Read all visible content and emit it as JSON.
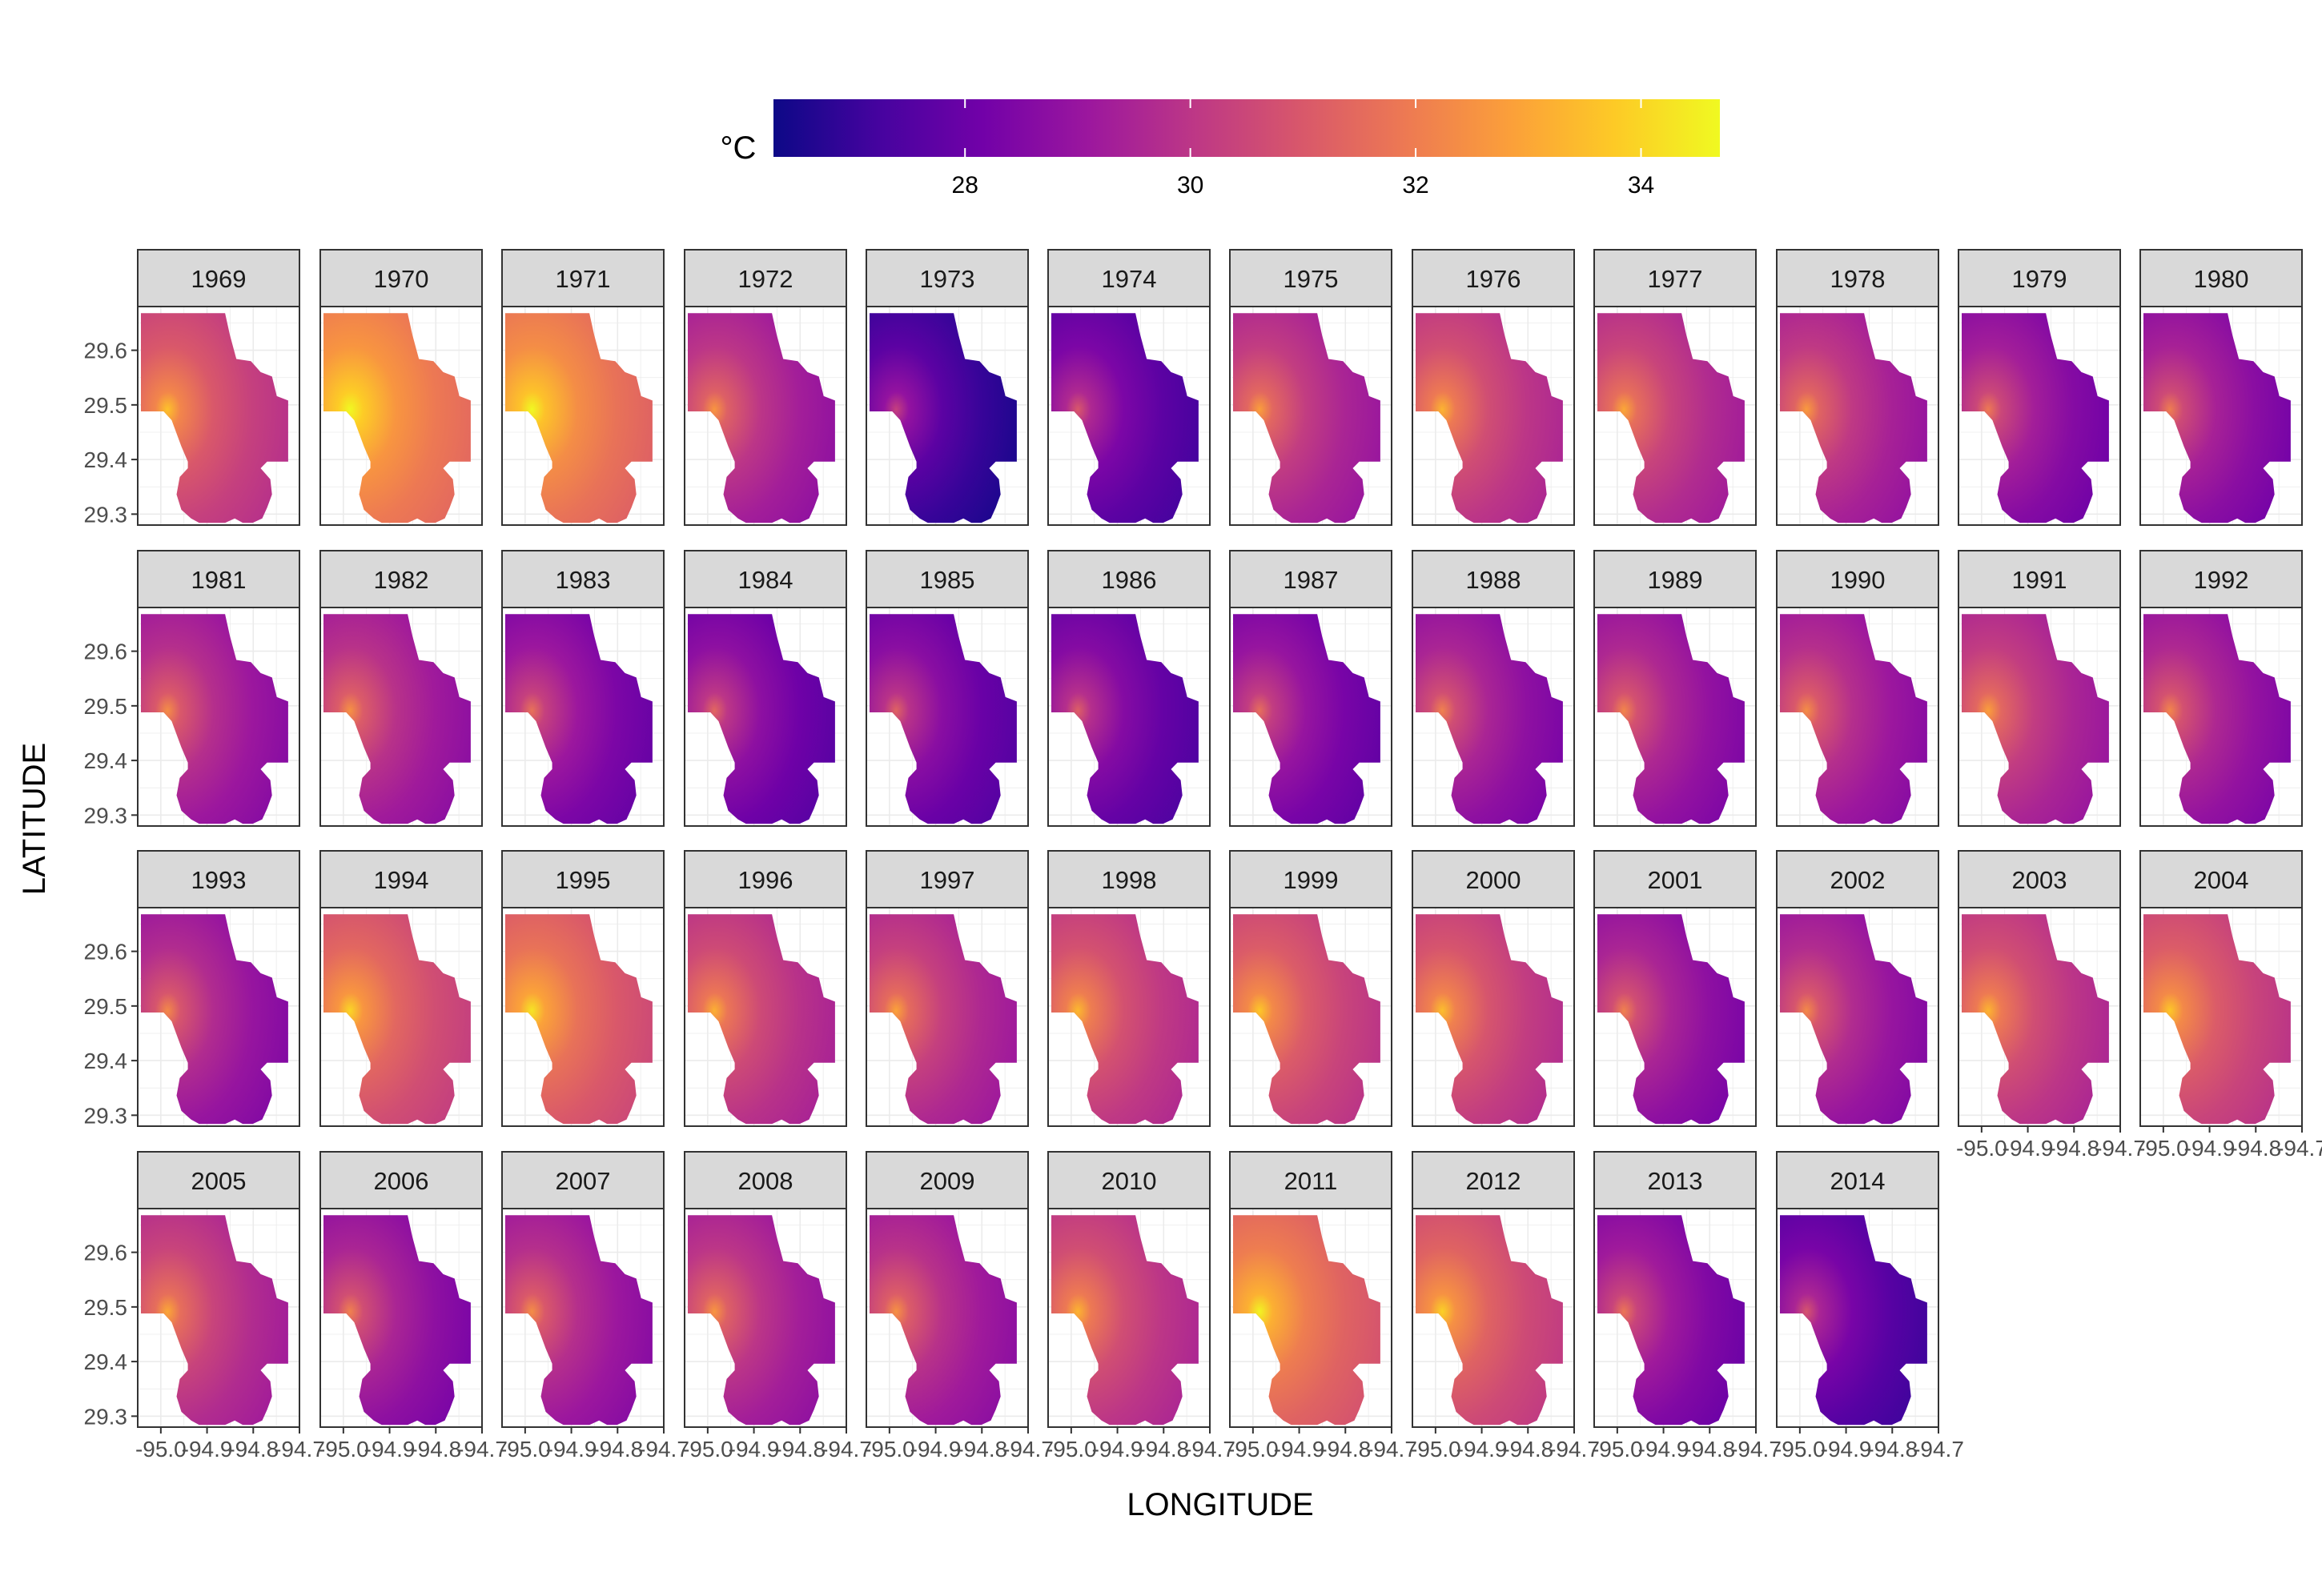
{
  "chart_data": {
    "type": "heatmap",
    "title": "",
    "xlabel": "LONGITUDE",
    "ylabel": "LATITUDE",
    "facet_by": "year",
    "layout": {
      "rows": 4,
      "cols": 12
    },
    "xlim": [
      -95.05,
      -94.7
    ],
    "ylim": [
      29.28,
      29.68
    ],
    "x_ticks": [
      -95.0,
      -94.9,
      -94.8,
      -94.7
    ],
    "x_tick_labels": [
      "-95.0",
      "-94.9",
      "-94.8",
      "-94.7"
    ],
    "y_ticks": [
      29.3,
      29.4,
      29.5,
      29.6
    ],
    "y_tick_labels": [
      "29.3",
      "29.4",
      "29.5",
      "29.6"
    ],
    "grid": true,
    "legend": {
      "title": "°C",
      "position": "top",
      "range": [
        26.3,
        34.7
      ],
      "ticks": [
        28,
        30,
        32,
        34
      ],
      "tick_labels": [
        "28",
        "30",
        "32",
        "34"
      ],
      "palette": "plasma",
      "colors": [
        "#0d0887",
        "#46039f",
        "#7201a8",
        "#9c179e",
        "#bd3786",
        "#d8576b",
        "#ed7953",
        "#fb9f3a",
        "#fdca26",
        "#f0f921"
      ]
    },
    "panels": [
      {
        "year": "1969",
        "mean": 30.6
      },
      {
        "year": "1970",
        "mean": 32.2
      },
      {
        "year": "1971",
        "mean": 32.0
      },
      {
        "year": "1972",
        "mean": 29.6
      },
      {
        "year": "1973",
        "mean": 27.3
      },
      {
        "year": "1974",
        "mean": 28.0
      },
      {
        "year": "1975",
        "mean": 29.8
      },
      {
        "year": "1976",
        "mean": 30.3
      },
      {
        "year": "1977",
        "mean": 30.0
      },
      {
        "year": "1978",
        "mean": 29.7
      },
      {
        "year": "1979",
        "mean": 28.9
      },
      {
        "year": "1980",
        "mean": 29.0
      },
      {
        "year": "1981",
        "mean": 29.4
      },
      {
        "year": "1982",
        "mean": 29.5
      },
      {
        "year": "1983",
        "mean": 28.7
      },
      {
        "year": "1984",
        "mean": 28.4
      },
      {
        "year": "1985",
        "mean": 28.3
      },
      {
        "year": "1986",
        "mean": 28.2
      },
      {
        "year": "1987",
        "mean": 28.6
      },
      {
        "year": "1988",
        "mean": 29.1
      },
      {
        "year": "1989",
        "mean": 29.2
      },
      {
        "year": "1990",
        "mean": 29.4
      },
      {
        "year": "1991",
        "mean": 29.8
      },
      {
        "year": "1992",
        "mean": 29.2
      },
      {
        "year": "1993",
        "mean": 29.3
      },
      {
        "year": "1994",
        "mean": 31.0
      },
      {
        "year": "1995",
        "mean": 31.3
      },
      {
        "year": "1996",
        "mean": 30.2
      },
      {
        "year": "1997",
        "mean": 29.9
      },
      {
        "year": "1998",
        "mean": 30.4
      },
      {
        "year": "1999",
        "mean": 30.7
      },
      {
        "year": "2000",
        "mean": 30.5
      },
      {
        "year": "2001",
        "mean": 29.1
      },
      {
        "year": "2002",
        "mean": 29.3
      },
      {
        "year": "2003",
        "mean": 30.3
      },
      {
        "year": "2004",
        "mean": 30.7
      },
      {
        "year": "2005",
        "mean": 30.0
      },
      {
        "year": "2006",
        "mean": 29.1
      },
      {
        "year": "2007",
        "mean": 29.4
      },
      {
        "year": "2008",
        "mean": 29.6
      },
      {
        "year": "2009",
        "mean": 29.5
      },
      {
        "year": "2010",
        "mean": 30.3
      },
      {
        "year": "2011",
        "mean": 31.6
      },
      {
        "year": "2012",
        "mean": 30.9
      },
      {
        "year": "2013",
        "mean": 28.8
      },
      {
        "year": "2014",
        "mean": 27.9
      }
    ]
  }
}
